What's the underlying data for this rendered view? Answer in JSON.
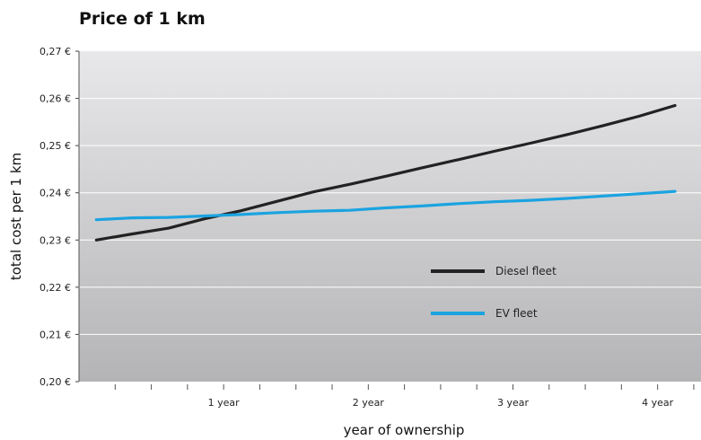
{
  "chart_data": {
    "type": "line",
    "title": "Price of 1 km",
    "xlabel": "year of ownership",
    "ylabel": "total cost per 1 km",
    "xlim": [
      0,
      4.3
    ],
    "ylim": [
      0.2,
      0.27
    ],
    "y_ticks": [
      0.2,
      0.21,
      0.22,
      0.23,
      0.24,
      0.25,
      0.26,
      0.27
    ],
    "y_tick_labels": [
      "0,20 €",
      "0,21 €",
      "0,22 €",
      "0,23 €",
      "0,24 €",
      "0,25 €",
      "0,26 €",
      "0,27 €"
    ],
    "x_tick_labels": [
      {
        "x": 1,
        "label": "1 year"
      },
      {
        "x": 2,
        "label": "2 year"
      },
      {
        "x": 3,
        "label": "3 year"
      },
      {
        "x": 4,
        "label": "4 year"
      }
    ],
    "x_minor_ticks": [
      0.25,
      0.5,
      0.75,
      1,
      1.25,
      1.5,
      1.75,
      2,
      2.25,
      2.5,
      2.75,
      3,
      3.25,
      3.5,
      3.75,
      4,
      4.25
    ],
    "grid": "horizontal",
    "background": "gradient light-gray to gray",
    "legend_position": "center-right",
    "series": [
      {
        "name": "Diesel fleet",
        "color": "#222222",
        "x": [
          0.12,
          0.37,
          0.62,
          0.87,
          1.12,
          1.37,
          1.62,
          1.87,
          2.12,
          2.37,
          2.62,
          2.87,
          3.12,
          3.37,
          3.62,
          3.87,
          4.12
        ],
        "y": [
          0.23,
          0.2313,
          0.2325,
          0.2345,
          0.2362,
          0.2382,
          0.2402,
          0.2418,
          0.2435,
          0.2453,
          0.247,
          0.2488,
          0.2505,
          0.2523,
          0.2542,
          0.2562,
          0.2585
        ]
      },
      {
        "name": "EV fleet",
        "color": "#1ba3e0",
        "x": [
          0.12,
          0.37,
          0.62,
          0.87,
          1.12,
          1.37,
          1.62,
          1.87,
          2.12,
          2.37,
          2.62,
          2.87,
          3.12,
          3.37,
          3.62,
          3.87,
          4.12
        ],
        "y": [
          0.2343,
          0.2347,
          0.2348,
          0.2351,
          0.2354,
          0.2358,
          0.2361,
          0.2363,
          0.2368,
          0.2372,
          0.2377,
          0.2381,
          0.2384,
          0.2388,
          0.2393,
          0.2398,
          0.2403
        ]
      }
    ]
  }
}
